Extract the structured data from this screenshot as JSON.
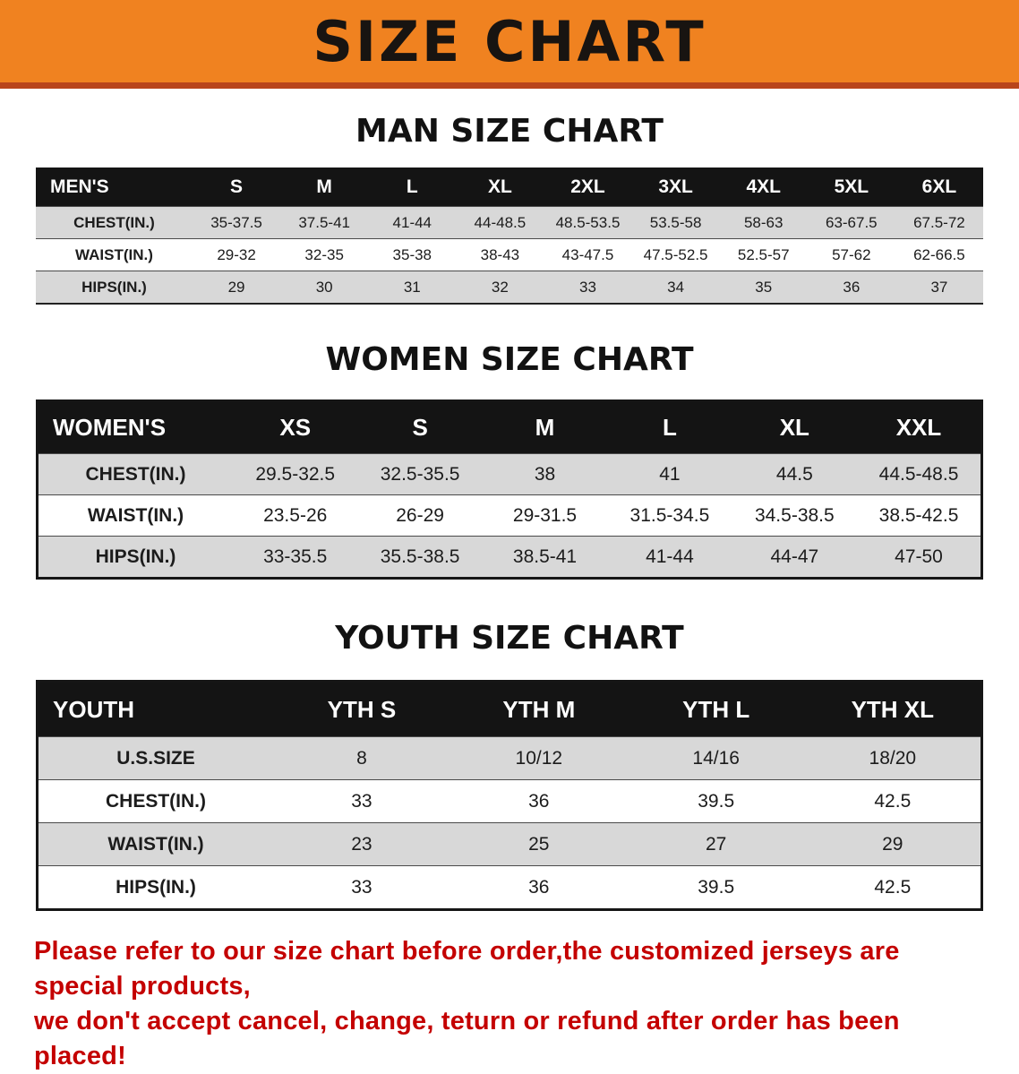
{
  "banner": {
    "title": "SIZE CHART"
  },
  "sections": [
    {
      "id": "men",
      "heading": "MAN SIZE CHART",
      "table": {
        "header": [
          "MEN'S",
          "S",
          "M",
          "L",
          "XL",
          "2XL",
          "3XL",
          "4XL",
          "5XL",
          "6XL"
        ],
        "rows": [
          [
            "CHEST(IN.)",
            "35-37.5",
            "37.5-41",
            "41-44",
            "44-48.5",
            "48.5-53.5",
            "53.5-58",
            "58-63",
            "63-67.5",
            "67.5-72"
          ],
          [
            "WAIST(IN.)",
            "29-32",
            "32-35",
            "35-38",
            "38-43",
            "43-47.5",
            "47.5-52.5",
            "52.5-57",
            "57-62",
            "62-66.5"
          ],
          [
            "HIPS(IN.)",
            "29",
            "30",
            "31",
            "32",
            "33",
            "34",
            "35",
            "36",
            "37"
          ]
        ]
      }
    },
    {
      "id": "women",
      "heading": "WOMEN SIZE CHART",
      "table": {
        "header": [
          "WOMEN'S",
          "XS",
          "S",
          "M",
          "L",
          "XL",
          "XXL"
        ],
        "rows": [
          [
            "CHEST(IN.)",
            "29.5-32.5",
            "32.5-35.5",
            "38",
            "41",
            "44.5",
            "44.5-48.5"
          ],
          [
            "WAIST(IN.)",
            "23.5-26",
            "26-29",
            "29-31.5",
            "31.5-34.5",
            "34.5-38.5",
            "38.5-42.5"
          ],
          [
            "HIPS(IN.)",
            "33-35.5",
            "35.5-38.5",
            "38.5-41",
            "41-44",
            "44-47",
            "47-50"
          ]
        ]
      }
    },
    {
      "id": "youth",
      "heading": "YOUTH SIZE CHART",
      "table": {
        "header": [
          "YOUTH",
          "YTH S",
          "YTH M",
          "YTH L",
          "YTH XL"
        ],
        "rows": [
          [
            "U.S.SIZE",
            "8",
            "10/12",
            "14/16",
            "18/20"
          ],
          [
            "CHEST(IN.)",
            "33",
            "36",
            "39.5",
            "42.5"
          ],
          [
            "WAIST(IN.)",
            "23",
            "25",
            "27",
            "29"
          ],
          [
            "HIPS(IN.)",
            "33",
            "36",
            "39.5",
            "42.5"
          ]
        ]
      }
    }
  ],
  "footer": {
    "line1": "Please refer to our size chart before order,the customized jerseys are special products,",
    "line2": "we don't accept cancel, change, teturn or refund after order has been placed!"
  },
  "colors": {
    "banner_bg": "#f08220",
    "banner_underline": "#b9441a",
    "header_bg": "#141414",
    "row_alt_bg": "#d8d8d8",
    "footer_text": "#c40000"
  }
}
